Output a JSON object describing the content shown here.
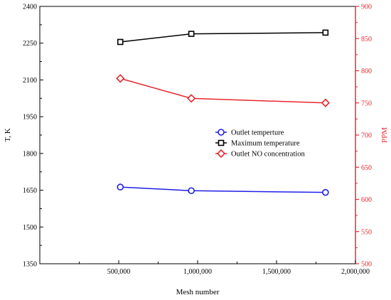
{
  "chart_data": {
    "type": "line",
    "xlabel": "Mesh number",
    "ylabel_left": "T, K",
    "ylabel_right": "PPM",
    "xlim": [
      0,
      2000000
    ],
    "ylim_left": [
      1350,
      2400
    ],
    "ylim_right": [
      500,
      900
    ],
    "x_ticks": [
      500000,
      1000000,
      1500000,
      2000000
    ],
    "x_tick_labels": [
      "500,000",
      "1,000,000",
      "1,500,000",
      "2,000,000"
    ],
    "y_left_ticks": [
      1350,
      1500,
      1650,
      1800,
      1950,
      2100,
      2250,
      2400
    ],
    "y_right_ticks": [
      500,
      550,
      600,
      650,
      700,
      750,
      800,
      850,
      900
    ],
    "grid": false,
    "legend_position": "center-right",
    "colors": {
      "left_axis": "#000000",
      "right_axis": "#e8282f"
    },
    "series": [
      {
        "name": "Outlet temperture",
        "axis": "left",
        "marker": "circle",
        "color": "#1f1fe6",
        "x": [
          510000,
          960000,
          1810000
        ],
        "values": [
          1663,
          1648,
          1641
        ]
      },
      {
        "name": "Maximum temperature",
        "axis": "left",
        "marker": "square",
        "color": "#000000",
        "x": [
          510000,
          960000,
          1810000
        ],
        "values": [
          2255,
          2288,
          2293
        ]
      },
      {
        "name": "Outlet NO concentration",
        "axis": "right",
        "marker": "diamond",
        "color": "#e8282f",
        "x": [
          510000,
          960000,
          1810000
        ],
        "values": [
          788,
          757,
          750
        ]
      }
    ]
  }
}
